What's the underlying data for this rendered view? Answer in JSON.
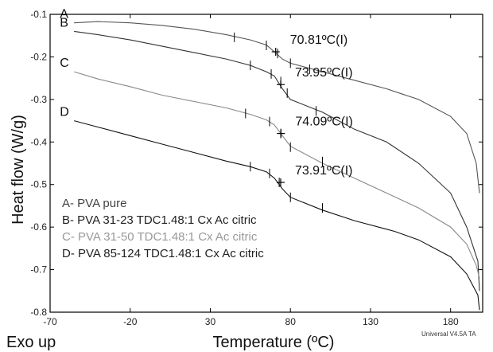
{
  "chart_data": {
    "type": "line",
    "xlabel": "Temperature (ºC)",
    "ylabel": "Heat flow (W/g)",
    "corner_label": "Exo up",
    "footer": "Universal V4.5A TA",
    "xlim": [
      -70,
      200
    ],
    "ylim": [
      -0.8,
      -0.1
    ],
    "x_ticks": [
      -70,
      -20,
      30,
      80,
      130,
      180
    ],
    "y_ticks": [
      -0.8,
      -0.7,
      -0.6,
      -0.5,
      -0.4,
      -0.3,
      -0.2,
      -0.1
    ],
    "colors": {
      "A": "#555555",
      "B": "#333333",
      "C": "#888888",
      "D": "#111111",
      "frame": "#000000"
    },
    "series": [
      {
        "name": "A",
        "legend": "A- PVA pure",
        "annotation": "70.81ºC(I)",
        "points": [
          [
            -55,
            -0.12
          ],
          [
            -40,
            -0.117
          ],
          [
            -20,
            -0.12
          ],
          [
            0,
            -0.126
          ],
          [
            20,
            -0.135
          ],
          [
            40,
            -0.148
          ],
          [
            55,
            -0.16
          ],
          [
            65,
            -0.172
          ],
          [
            70,
            -0.188
          ],
          [
            75,
            -0.205
          ],
          [
            80,
            -0.215
          ],
          [
            100,
            -0.235
          ],
          [
            120,
            -0.255
          ],
          [
            140,
            -0.275
          ],
          [
            160,
            -0.3
          ],
          [
            180,
            -0.34
          ],
          [
            190,
            -0.38
          ],
          [
            196,
            -0.45
          ],
          [
            198,
            -0.52
          ]
        ],
        "tick_marks": [
          [
            45,
            -0.154
          ],
          [
            65,
            -0.173
          ],
          [
            72,
            -0.192
          ],
          [
            80,
            -0.215
          ],
          [
            92,
            -0.229
          ]
        ],
        "transition_point": [
          70.81,
          -0.188
        ]
      },
      {
        "name": "B",
        "legend": "B- PVA 31-23 TDC1.48:1 Cx Ac citric",
        "annotation": "73.95ºC(I)",
        "points": [
          [
            -55,
            -0.14
          ],
          [
            -40,
            -0.148
          ],
          [
            -20,
            -0.16
          ],
          [
            0,
            -0.175
          ],
          [
            20,
            -0.19
          ],
          [
            40,
            -0.205
          ],
          [
            55,
            -0.22
          ],
          [
            65,
            -0.235
          ],
          [
            70,
            -0.245
          ],
          [
            75,
            -0.275
          ],
          [
            80,
            -0.3
          ],
          [
            100,
            -0.33
          ],
          [
            120,
            -0.37
          ],
          [
            140,
            -0.4
          ],
          [
            160,
            -0.45
          ],
          [
            180,
            -0.52
          ],
          [
            190,
            -0.6
          ],
          [
            197,
            -0.68
          ],
          [
            198,
            -0.75
          ]
        ],
        "tick_marks": [
          [
            55,
            -0.22
          ],
          [
            68,
            -0.24
          ],
          [
            74,
            -0.258
          ],
          [
            78,
            -0.285
          ],
          [
            96,
            -0.327
          ]
        ],
        "transition_point": [
          73.95,
          -0.265
        ]
      },
      {
        "name": "C",
        "legend": "C- PVA 31-50 TDC1.48:1 Cx Ac citric",
        "annotation": "74.09ºC(I)",
        "points": [
          [
            -55,
            -0.235
          ],
          [
            -40,
            -0.252
          ],
          [
            -20,
            -0.27
          ],
          [
            0,
            -0.29
          ],
          [
            20,
            -0.305
          ],
          [
            40,
            -0.32
          ],
          [
            55,
            -0.335
          ],
          [
            65,
            -0.348
          ],
          [
            70,
            -0.36
          ],
          [
            75,
            -0.385
          ],
          [
            80,
            -0.41
          ],
          [
            100,
            -0.45
          ],
          [
            120,
            -0.485
          ],
          [
            140,
            -0.52
          ],
          [
            160,
            -0.555
          ],
          [
            180,
            -0.6
          ],
          [
            190,
            -0.64
          ],
          [
            196,
            -0.69
          ],
          [
            198,
            -0.72
          ]
        ],
        "tick_marks": [
          [
            52,
            -0.333
          ],
          [
            67,
            -0.352
          ],
          [
            74,
            -0.38
          ],
          [
            80,
            -0.412
          ],
          [
            100,
            -0.446
          ]
        ],
        "transition_point": [
          74.09,
          -0.38
        ]
      },
      {
        "name": "D",
        "legend": "D- PVA 85-124 TDC1.48:1 Cx Ac citric",
        "annotation": "73.91ºC(I)",
        "points": [
          [
            -55,
            -0.35
          ],
          [
            -40,
            -0.365
          ],
          [
            -20,
            -0.385
          ],
          [
            0,
            -0.405
          ],
          [
            20,
            -0.425
          ],
          [
            40,
            -0.445
          ],
          [
            55,
            -0.458
          ],
          [
            65,
            -0.47
          ],
          [
            70,
            -0.485
          ],
          [
            75,
            -0.51
          ],
          [
            80,
            -0.53
          ],
          [
            100,
            -0.56
          ],
          [
            120,
            -0.585
          ],
          [
            140,
            -0.605
          ],
          [
            145,
            -0.61
          ],
          [
            160,
            -0.63
          ],
          [
            180,
            -0.67
          ],
          [
            190,
            -0.71
          ],
          [
            197,
            -0.76
          ],
          [
            198,
            -0.795
          ]
        ],
        "tick_marks": [
          [
            55,
            -0.458
          ],
          [
            67,
            -0.474
          ],
          [
            73,
            -0.495
          ],
          [
            80,
            -0.53
          ],
          [
            100,
            -0.555
          ]
        ],
        "transition_point": [
          73.91,
          -0.495
        ]
      }
    ]
  }
}
